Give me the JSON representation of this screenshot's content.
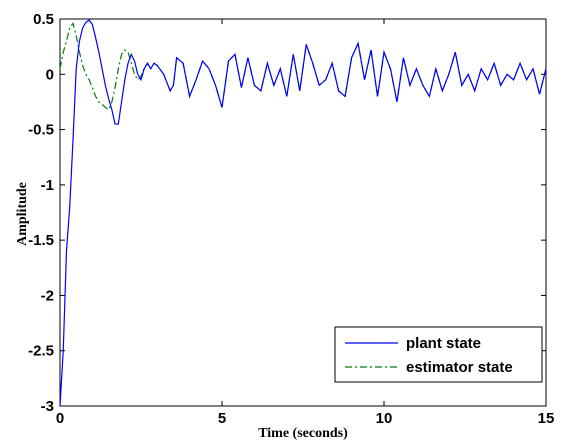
{
  "chart_data": {
    "type": "line",
    "title": "",
    "xlabel": "Time (seconds)",
    "ylabel": "Amplitude",
    "xlim": [
      0,
      15
    ],
    "ylim": [
      -3,
      0.5
    ],
    "xticks": [
      "0",
      "5",
      "10",
      "15"
    ],
    "yticks": [
      "-3",
      "-2.5",
      "-2",
      "-1.5",
      "-1",
      "-0.5",
      "0",
      "0.5"
    ],
    "grid": false,
    "legend_position": "bottom-right",
    "series": [
      {
        "name": "plant state",
        "color": "#0000ff",
        "style": "solid",
        "x": [
          0,
          0.1,
          0.2,
          0.3,
          0.4,
          0.5,
          0.6,
          0.7,
          0.8,
          0.9,
          1.0,
          1.1,
          1.2,
          1.3,
          1.4,
          1.5,
          1.6,
          1.7,
          1.8,
          1.9,
          2.0,
          2.1,
          2.2,
          2.3,
          2.4,
          2.5,
          2.6,
          2.7,
          2.8,
          2.9,
          3.0,
          3.2,
          3.4,
          3.5,
          3.6,
          3.8,
          4.0,
          4.2,
          4.4,
          4.6,
          4.8,
          5.0,
          5.2,
          5.4,
          5.6,
          5.8,
          6.0,
          6.2,
          6.4,
          6.6,
          6.8,
          7.0,
          7.2,
          7.4,
          7.6,
          7.8,
          8.0,
          8.2,
          8.4,
          8.6,
          8.8,
          9.0,
          9.2,
          9.4,
          9.6,
          9.8,
          10.0,
          10.2,
          10.4,
          10.6,
          10.8,
          11.0,
          11.2,
          11.4,
          11.6,
          11.8,
          12.0,
          12.2,
          12.4,
          12.6,
          12.8,
          13.0,
          13.2,
          13.4,
          13.6,
          13.8,
          14.0,
          14.2,
          14.4,
          14.6,
          14.8,
          15.0
        ],
        "y": [
          -3.0,
          -2.5,
          -1.6,
          -1.2,
          -0.6,
          0.05,
          0.3,
          0.42,
          0.47,
          0.49,
          0.45,
          0.33,
          0.2,
          0.05,
          -0.1,
          -0.22,
          -0.32,
          -0.45,
          -0.45,
          -0.25,
          -0.05,
          0.1,
          0.18,
          0.12,
          0.0,
          -0.05,
          0.05,
          0.1,
          0.05,
          0.1,
          0.08,
          0.0,
          -0.15,
          -0.1,
          0.15,
          0.1,
          -0.2,
          -0.05,
          0.12,
          0.05,
          -0.1,
          -0.3,
          0.12,
          0.18,
          -0.12,
          0.15,
          -0.1,
          -0.15,
          0.1,
          -0.1,
          0.05,
          -0.2,
          0.18,
          -0.15,
          0.27,
          0.1,
          -0.1,
          -0.05,
          0.1,
          -0.15,
          -0.2,
          0.15,
          0.28,
          -0.05,
          0.22,
          -0.2,
          0.2,
          0.05,
          -0.25,
          0.15,
          -0.1,
          0.05,
          -0.1,
          -0.2,
          0.05,
          -0.15,
          0.0,
          0.2,
          -0.1,
          0.0,
          -0.15,
          0.05,
          -0.05,
          0.1,
          -0.1,
          0.0,
          -0.05,
          0.1,
          -0.05,
          0.05,
          -0.18,
          0.05
        ]
      },
      {
        "name": "estimator state",
        "color": "#007f00",
        "style": "dashdot",
        "x": [
          0,
          0.1,
          0.2,
          0.3,
          0.4,
          0.5,
          0.6,
          0.7,
          0.8,
          0.9,
          1.0,
          1.1,
          1.2,
          1.3,
          1.4,
          1.5,
          1.6,
          1.7,
          1.8,
          1.9,
          2.0,
          2.1,
          2.2,
          2.3,
          2.4,
          2.5,
          2.6,
          2.7,
          2.8,
          2.9,
          3.0,
          3.2,
          3.4,
          3.5,
          3.6,
          3.8,
          4.0,
          4.2,
          4.4,
          4.6,
          4.8,
          5.0,
          5.2,
          5.4,
          5.6,
          5.8,
          6.0,
          6.2,
          6.4,
          6.6,
          6.8,
          7.0,
          7.2,
          7.4,
          7.6,
          7.8,
          8.0,
          8.2,
          8.4,
          8.6,
          8.8,
          9.0,
          9.2,
          9.4,
          9.6,
          9.8,
          10.0,
          10.2,
          10.4,
          10.6,
          10.8,
          11.0,
          11.2,
          11.4,
          11.6,
          11.8,
          12.0,
          12.2,
          12.4,
          12.6,
          12.8,
          13.0,
          13.2,
          13.4,
          13.6,
          13.8,
          14.0,
          14.2,
          14.4,
          14.6,
          14.8,
          15.0
        ],
        "y": [
          0.05,
          0.2,
          0.3,
          0.42,
          0.46,
          0.35,
          0.2,
          0.08,
          0.0,
          -0.05,
          -0.12,
          -0.2,
          -0.25,
          -0.27,
          -0.3,
          -0.32,
          -0.25,
          -0.12,
          0.05,
          0.18,
          0.22,
          0.2,
          0.1,
          0.0,
          -0.05,
          -0.02,
          0.06,
          0.1,
          0.05,
          0.1,
          0.08,
          0.0,
          -0.15,
          -0.1,
          0.15,
          0.1,
          -0.2,
          -0.05,
          0.12,
          0.05,
          -0.1,
          -0.3,
          0.12,
          0.18,
          -0.12,
          0.15,
          -0.1,
          -0.15,
          0.1,
          -0.1,
          0.05,
          -0.2,
          0.18,
          -0.15,
          0.27,
          0.1,
          -0.1,
          -0.05,
          0.1,
          -0.15,
          -0.2,
          0.15,
          0.28,
          -0.05,
          0.22,
          -0.2,
          0.2,
          0.05,
          -0.25,
          0.15,
          -0.1,
          0.05,
          -0.1,
          -0.2,
          0.05,
          -0.15,
          0.0,
          0.2,
          -0.1,
          0.0,
          -0.15,
          0.05,
          -0.05,
          0.1,
          -0.1,
          0.0,
          -0.05,
          0.1,
          -0.05,
          0.05,
          -0.18,
          0.05
        ]
      }
    ]
  }
}
